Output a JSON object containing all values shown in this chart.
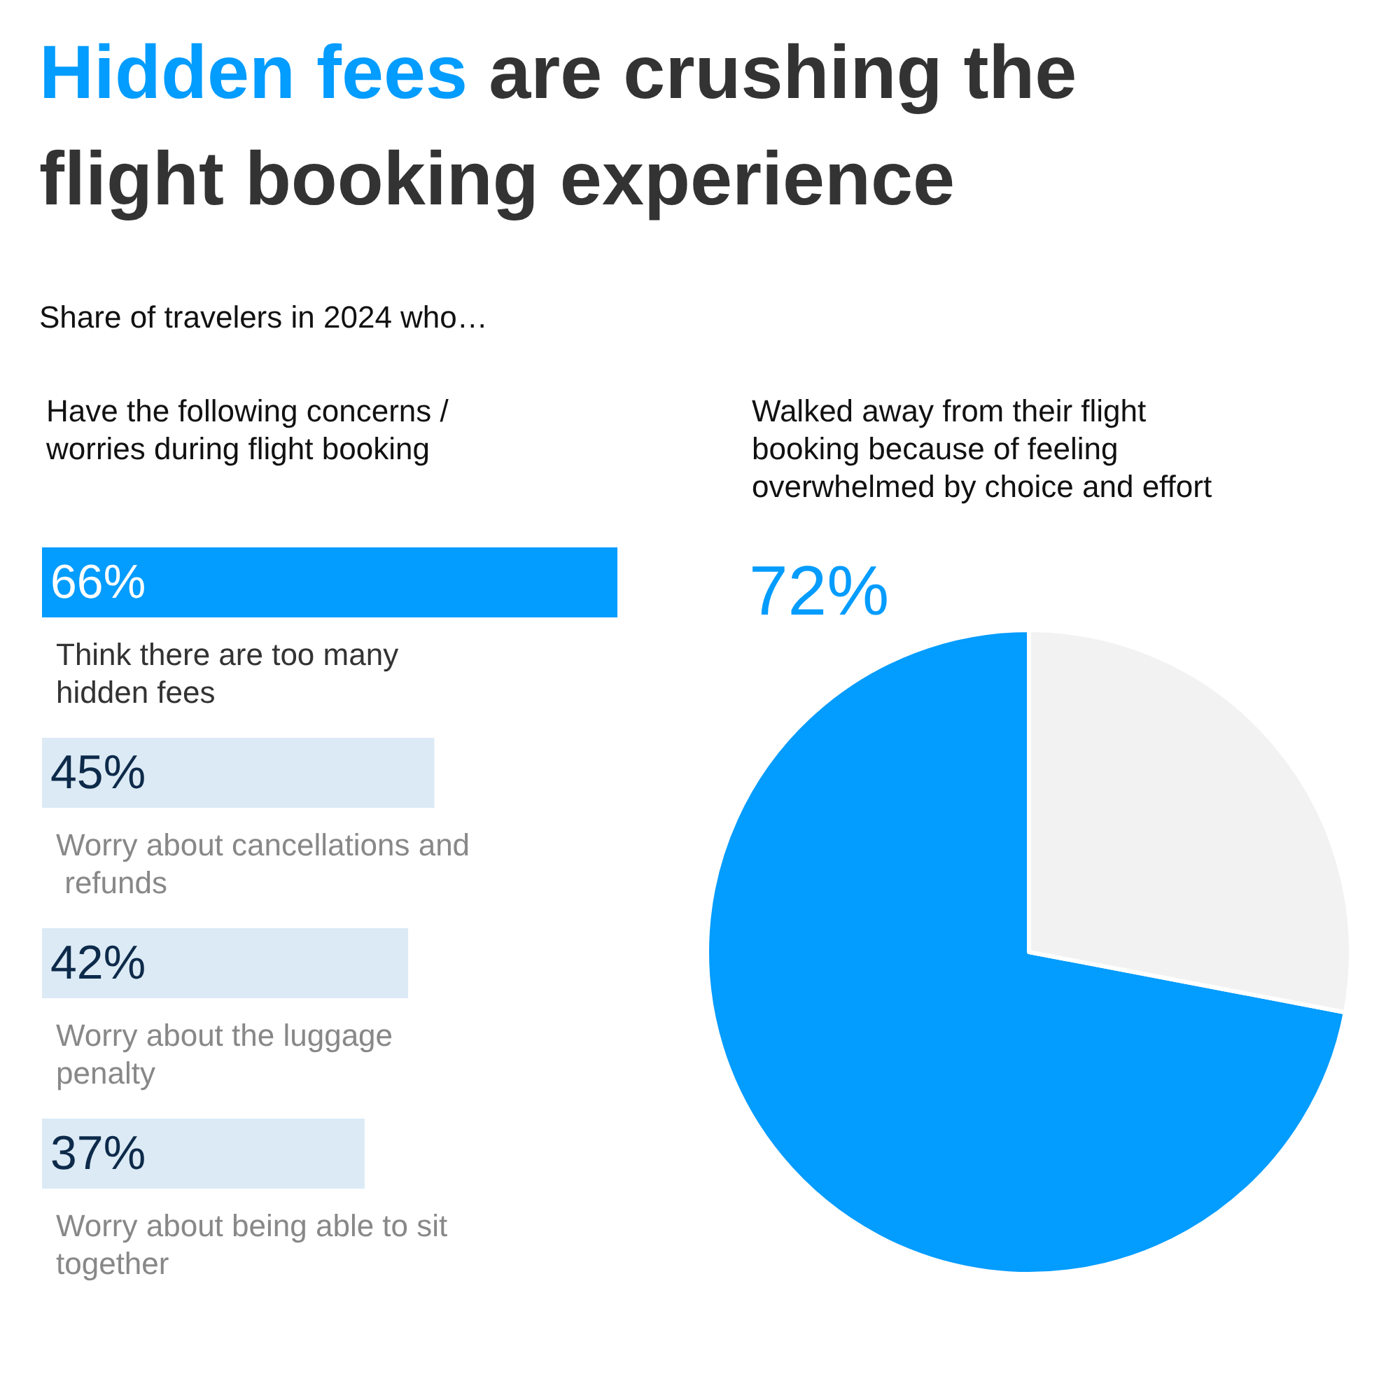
{
  "chart_data": [
    {
      "type": "other",
      "title": "Hidden fees are crushing the flight booking experience",
      "subtitle": "Share of travelers in 2024 who…"
    },
    {
      "type": "bar",
      "orientation": "horizontal",
      "title": "Have the following concerns / worries during flight booking",
      "categories": [
        "Think there are too many hidden fees",
        "Worry about cancellations and refunds",
        "Worry about the luggage penalty",
        "Worry about being able to sit together"
      ],
      "values": [
        66,
        45,
        42,
        37
      ],
      "colors": [
        "#039cff",
        "#dbeaf5",
        "#dbeaf5",
        "#dbeaf5"
      ],
      "value_labels": [
        "66%",
        "45%",
        "42%",
        "37%"
      ]
    },
    {
      "type": "pie",
      "title": "Walked away from their flight booking because of feeling overwhelmed by choice and effort",
      "categories": [
        null,
        null
      ],
      "values": [
        72,
        28
      ],
      "colors": [
        "#039cff",
        "#f2f2f2"
      ],
      "value_labels": [
        "72%",
        null
      ]
    }
  ]
}
